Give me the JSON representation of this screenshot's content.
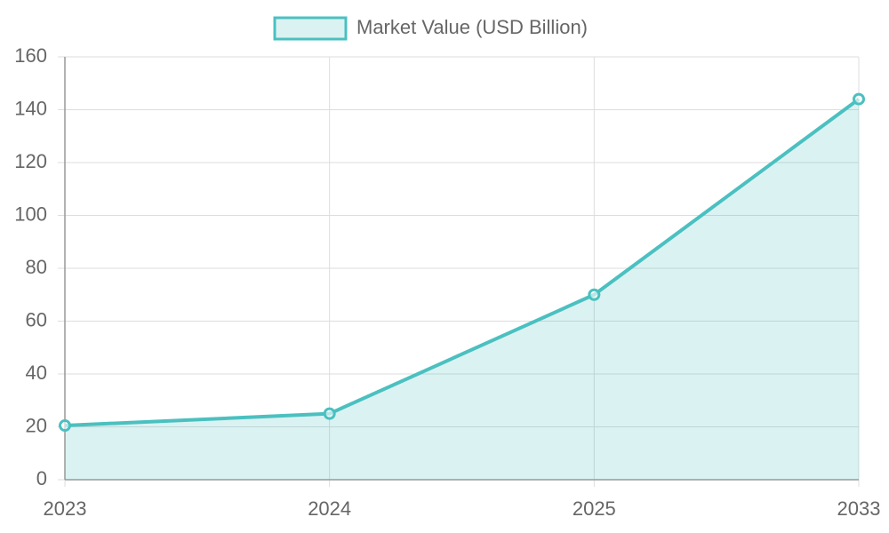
{
  "chart_data": {
    "type": "line",
    "categories": [
      "2023",
      "2024",
      "2025",
      "2033"
    ],
    "series": [
      {
        "name": "Market Value (USD Billion)",
        "color": "#4bc0c0",
        "values": [
          20.5,
          25,
          70,
          144
        ]
      }
    ],
    "fill": true,
    "ylim": [
      0,
      160
    ],
    "yticks": [
      0,
      20,
      40,
      60,
      80,
      100,
      120,
      140,
      160
    ],
    "grid": true,
    "legend": "top"
  }
}
